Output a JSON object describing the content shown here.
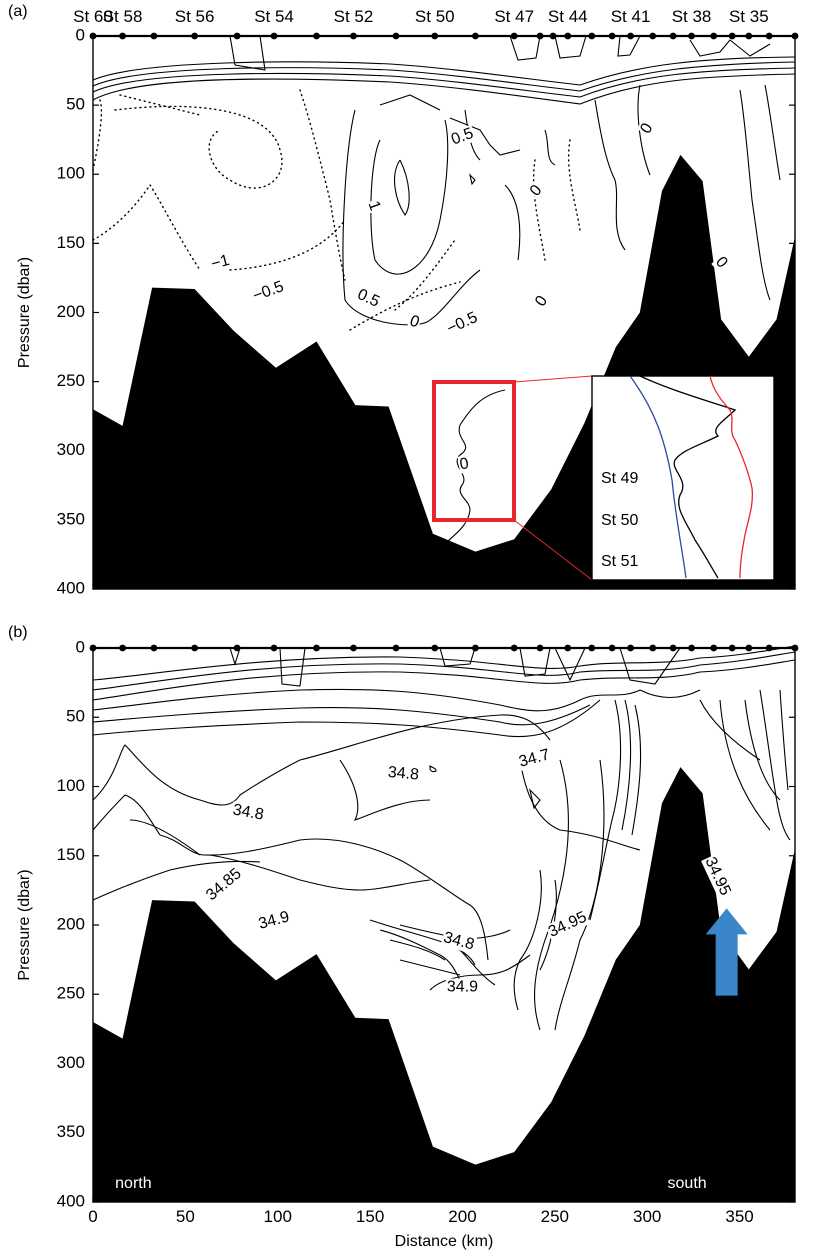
{
  "chart_data": [
    {
      "panel": "(a)",
      "type": "contour",
      "title": "",
      "xlabel": "",
      "ylabel": "Pressure (dbar)",
      "xlim": [
        0,
        380
      ],
      "ylim": [
        400,
        0
      ],
      "y_ticks": [
        0,
        50,
        100,
        150,
        200,
        250,
        300,
        350,
        400
      ],
      "stations": [
        {
          "name": "St 60",
          "x": 0
        },
        {
          "name": "St 58",
          "x": 16
        },
        {
          "name": "St 56",
          "x": 55
        },
        {
          "name": "St 54",
          "x": 98
        },
        {
          "name": "St 52",
          "x": 141
        },
        {
          "name": "St 50",
          "x": 185
        },
        {
          "name": "St 47",
          "x": 228
        },
        {
          "name": "St 44",
          "x": 257
        },
        {
          "name": "St 41",
          "x": 291
        },
        {
          "name": "St 38",
          "x": 324
        },
        {
          "name": "St 35",
          "x": 355
        }
      ],
      "station_dots_x": [
        0,
        16,
        33,
        55,
        78,
        98,
        121,
        141,
        164,
        185,
        207,
        228,
        242,
        249,
        257,
        270,
        281,
        291,
        303,
        314,
        324,
        336,
        346,
        355,
        366,
        380
      ],
      "bottom_profile": [
        [
          0,
          270
        ],
        [
          16,
          282
        ],
        [
          32,
          182
        ],
        [
          55,
          183
        ],
        [
          76,
          213
        ],
        [
          99,
          240
        ],
        [
          121,
          221
        ],
        [
          142,
          267
        ],
        [
          160,
          268
        ],
        [
          184,
          360
        ],
        [
          207,
          373
        ],
        [
          228,
          364
        ],
        [
          248,
          328
        ],
        [
          266,
          280
        ],
        [
          283,
          225
        ],
        [
          296,
          200
        ],
        [
          308,
          112
        ],
        [
          318,
          86
        ],
        [
          330,
          105
        ],
        [
          340,
          205
        ],
        [
          355,
          232
        ],
        [
          370,
          205
        ],
        [
          380,
          145
        ]
      ],
      "contour_labels": [
        {
          "text": "0.5",
          "x": 200,
          "y": 73,
          "angle": -20
        },
        {
          "text": "0",
          "x": 240,
          "y": 112,
          "angle": -50
        },
        {
          "text": "0",
          "x": 300,
          "y": 67,
          "angle": -60
        },
        {
          "text": "1",
          "x": 152,
          "y": 123,
          "angle": 70
        },
        {
          "text": "-1",
          "x": 69,
          "y": 164,
          "angle": -15
        },
        {
          "text": "-0.5",
          "x": 95,
          "y": 185,
          "angle": -20
        },
        {
          "text": "0.5",
          "x": 149,
          "y": 190,
          "angle": 25
        },
        {
          "text": "0",
          "x": 174,
          "y": 207,
          "angle": 20
        },
        {
          "text": "-0.5",
          "x": 200,
          "y": 208,
          "angle": -25
        },
        {
          "text": "0",
          "x": 243,
          "y": 192,
          "angle": -55
        },
        {
          "text": "0",
          "x": 340,
          "y": 164,
          "angle": 50
        },
        {
          "text": "0",
          "x": 201,
          "y": 310,
          "angle": -10
        }
      ],
      "inset_legend": [
        {
          "label": "St 49",
          "color": "#e8262d"
        },
        {
          "label": "St 50",
          "color": "#000000"
        },
        {
          "label": "St 51",
          "color": "#2b4aa0"
        }
      ],
      "highlight_color": "#e8262d"
    },
    {
      "panel": "(b)",
      "type": "contour",
      "title": "",
      "xlabel": "Distance (km)",
      "ylabel": "Pressure (dbar)",
      "xlim": [
        0,
        380
      ],
      "ylim": [
        400,
        0
      ],
      "x_ticks": [
        0,
        50,
        100,
        150,
        200,
        250,
        300,
        350
      ],
      "y_ticks": [
        0,
        50,
        100,
        150,
        200,
        250,
        300,
        350,
        400
      ],
      "station_dots_x": [
        0,
        16,
        33,
        55,
        78,
        98,
        121,
        141,
        164,
        185,
        207,
        228,
        242,
        257,
        270,
        281,
        291,
        303,
        314,
        324,
        336,
        346,
        355,
        366,
        380
      ],
      "bottom_profile": [
        [
          0,
          270
        ],
        [
          16,
          282
        ],
        [
          32,
          182
        ],
        [
          55,
          183
        ],
        [
          76,
          213
        ],
        [
          99,
          240
        ],
        [
          121,
          221
        ],
        [
          142,
          267
        ],
        [
          160,
          268
        ],
        [
          184,
          360
        ],
        [
          207,
          373
        ],
        [
          228,
          364
        ],
        [
          248,
          328
        ],
        [
          266,
          280
        ],
        [
          283,
          225
        ],
        [
          296,
          200
        ],
        [
          308,
          112
        ],
        [
          318,
          86
        ],
        [
          330,
          105
        ],
        [
          340,
          205
        ],
        [
          355,
          232
        ],
        [
          370,
          205
        ],
        [
          380,
          145
        ]
      ],
      "contour_labels": [
        {
          "text": "34.7",
          "x": 239,
          "y": 80,
          "angle": -15
        },
        {
          "text": "34.8",
          "x": 168,
          "y": 91,
          "angle": 5
        },
        {
          "text": "34.8",
          "x": 84,
          "y": 119,
          "angle": 10
        },
        {
          "text": "34.85",
          "x": 71,
          "y": 171,
          "angle": -40
        },
        {
          "text": "34.9",
          "x": 98,
          "y": 197,
          "angle": -15
        },
        {
          "text": "34.8",
          "x": 198,
          "y": 212,
          "angle": 15
        },
        {
          "text": "34.95",
          "x": 257,
          "y": 200,
          "angle": -25
        },
        {
          "text": "34.9",
          "x": 200,
          "y": 245,
          "angle": 0
        },
        {
          "text": "34.95",
          "x": 338,
          "y": 165,
          "angle": 65
        }
      ],
      "annotations": [
        {
          "text": "north",
          "x": 12,
          "y": 390
        },
        {
          "text": "south",
          "x": 311,
          "y": 390
        }
      ],
      "arrow": {
        "x": 343,
        "y_tip": 188,
        "y_base": 251,
        "color": "#3a86c8"
      }
    }
  ]
}
